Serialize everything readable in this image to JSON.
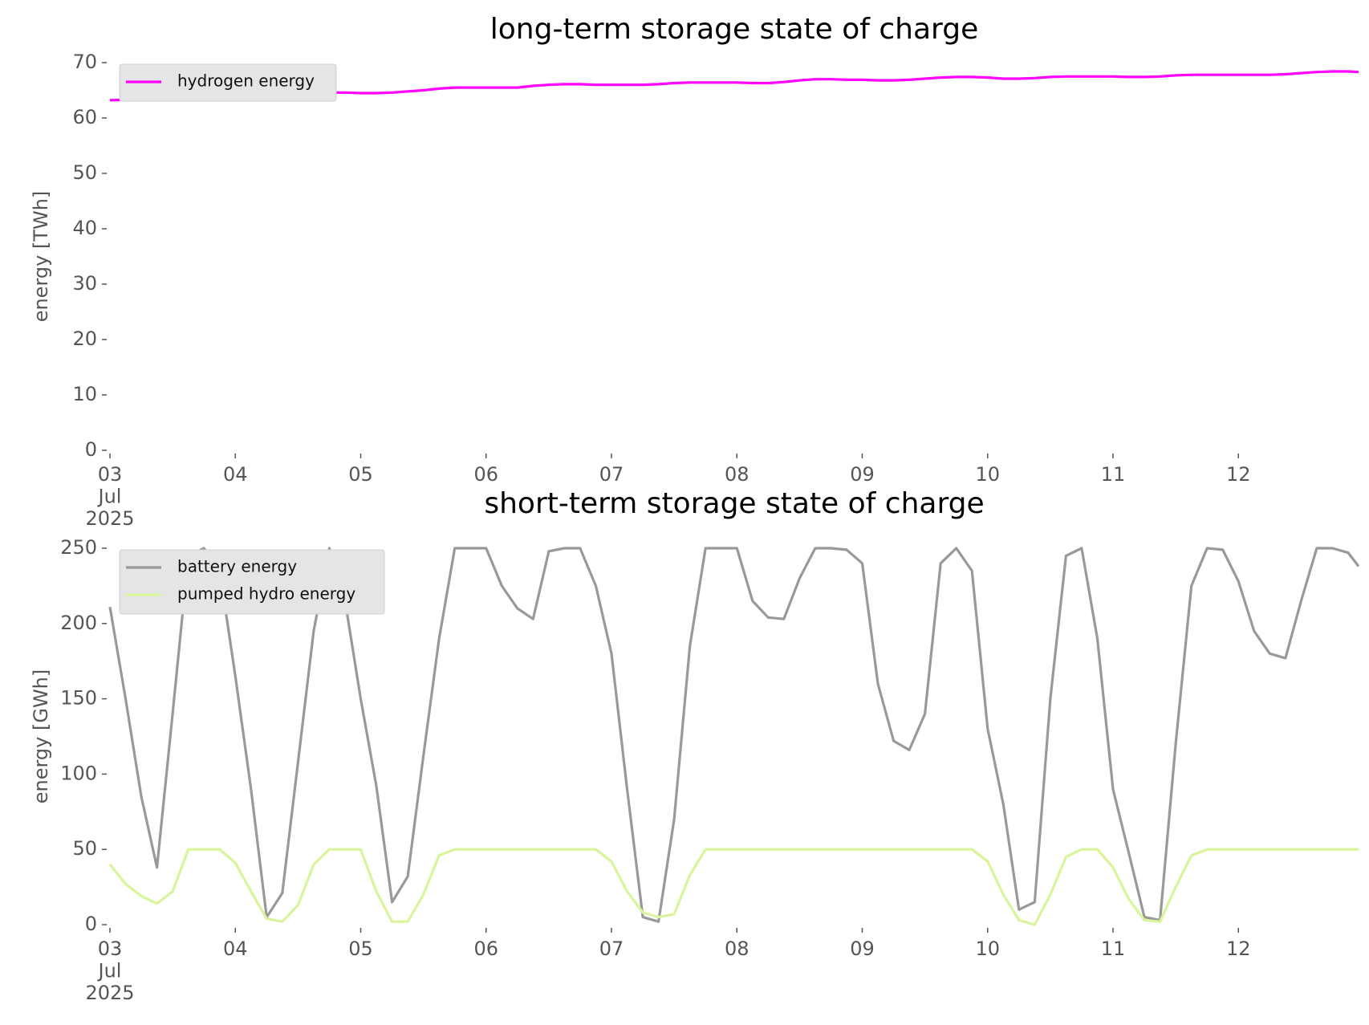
{
  "chart_data": [
    {
      "type": "line",
      "title": "long-term storage state of charge",
      "y_label": "energy [TWh]",
      "legend": "upper left",
      "x": [
        "2025-07-03T00:00",
        "2025-07-03T03:00",
        "2025-07-03T06:00",
        "2025-07-03T09:00",
        "2025-07-03T12:00",
        "2025-07-03T15:00",
        "2025-07-03T18:00",
        "2025-07-03T21:00",
        "2025-07-04T00:00",
        "2025-07-04T03:00",
        "2025-07-04T06:00",
        "2025-07-04T09:00",
        "2025-07-04T12:00",
        "2025-07-04T15:00",
        "2025-07-04T18:00",
        "2025-07-04T21:00",
        "2025-07-05T00:00",
        "2025-07-05T03:00",
        "2025-07-05T06:00",
        "2025-07-05T09:00",
        "2025-07-05T12:00",
        "2025-07-05T15:00",
        "2025-07-05T18:00",
        "2025-07-05T21:00",
        "2025-07-06T00:00",
        "2025-07-06T03:00",
        "2025-07-06T06:00",
        "2025-07-06T09:00",
        "2025-07-06T12:00",
        "2025-07-06T15:00",
        "2025-07-06T18:00",
        "2025-07-06T21:00",
        "2025-07-07T00:00",
        "2025-07-07T03:00",
        "2025-07-07T06:00",
        "2025-07-07T09:00",
        "2025-07-07T12:00",
        "2025-07-07T15:00",
        "2025-07-07T18:00",
        "2025-07-07T21:00",
        "2025-07-08T00:00",
        "2025-07-08T03:00",
        "2025-07-08T06:00",
        "2025-07-08T09:00",
        "2025-07-08T12:00",
        "2025-07-08T15:00",
        "2025-07-08T18:00",
        "2025-07-08T21:00",
        "2025-07-09T00:00",
        "2025-07-09T03:00",
        "2025-07-09T06:00",
        "2025-07-09T09:00",
        "2025-07-09T12:00",
        "2025-07-09T15:00",
        "2025-07-09T18:00",
        "2025-07-09T21:00",
        "2025-07-10T00:00",
        "2025-07-10T03:00",
        "2025-07-10T06:00",
        "2025-07-10T09:00",
        "2025-07-10T12:00",
        "2025-07-10T15:00",
        "2025-07-10T18:00",
        "2025-07-10T21:00",
        "2025-07-11T00:00",
        "2025-07-11T03:00",
        "2025-07-11T06:00",
        "2025-07-11T09:00",
        "2025-07-11T12:00",
        "2025-07-11T15:00",
        "2025-07-11T18:00",
        "2025-07-11T21:00",
        "2025-07-12T00:00",
        "2025-07-12T03:00",
        "2025-07-12T06:00",
        "2025-07-12T09:00",
        "2025-07-12T12:00",
        "2025-07-12T15:00",
        "2025-07-12T18:00",
        "2025-07-12T21:00",
        "2025-07-12T23:00"
      ],
      "series": [
        {
          "name": "hydrogen energy",
          "color": "#ff00ff",
          "values": [
            63.2,
            63.3,
            63.4,
            63.6,
            63.8,
            64.0,
            64.1,
            64.0,
            63.9,
            63.9,
            64.1,
            64.3,
            64.5,
            64.6,
            64.6,
            64.6,
            64.5,
            64.5,
            64.6,
            64.8,
            65.0,
            65.3,
            65.5,
            65.5,
            65.5,
            65.5,
            65.5,
            65.8,
            66.0,
            66.1,
            66.1,
            66.0,
            66.0,
            66.0,
            66.0,
            66.1,
            66.3,
            66.4,
            66.4,
            66.4,
            66.4,
            66.3,
            66.3,
            66.5,
            66.8,
            67.0,
            67.0,
            66.9,
            66.9,
            66.8,
            66.8,
            66.9,
            67.1,
            67.3,
            67.4,
            67.4,
            67.3,
            67.1,
            67.1,
            67.2,
            67.4,
            67.5,
            67.5,
            67.5,
            67.5,
            67.4,
            67.4,
            67.5,
            67.7,
            67.8,
            67.8,
            67.8,
            67.8,
            67.8,
            67.8,
            67.9,
            68.1,
            68.3,
            68.4,
            68.4,
            68.3
          ]
        }
      ],
      "xlim": [
        "2025-07-03T00:00",
        "2025-07-12T23:00"
      ],
      "xticks": [
        {
          "value": "2025-07-03T00:00",
          "label": "03\nJul\n2025"
        },
        {
          "value": "2025-07-04T00:00",
          "label": "04"
        },
        {
          "value": "2025-07-05T00:00",
          "label": "05"
        },
        {
          "value": "2025-07-06T00:00",
          "label": "06"
        },
        {
          "value": "2025-07-07T00:00",
          "label": "07"
        },
        {
          "value": "2025-07-08T00:00",
          "label": "08"
        },
        {
          "value": "2025-07-09T00:00",
          "label": "09"
        },
        {
          "value": "2025-07-10T00:00",
          "label": "10"
        },
        {
          "value": "2025-07-11T00:00",
          "label": "11"
        },
        {
          "value": "2025-07-12T00:00",
          "label": "12"
        }
      ],
      "ylim": [
        0,
        70
      ],
      "yticks": [
        0,
        10,
        20,
        30,
        40,
        50,
        60,
        70
      ]
    },
    {
      "type": "line",
      "title": "short-term storage state of charge",
      "y_label": "energy [GWh]",
      "legend": "upper left",
      "x": [
        "2025-07-03T00:00",
        "2025-07-03T03:00",
        "2025-07-03T06:00",
        "2025-07-03T09:00",
        "2025-07-03T12:00",
        "2025-07-03T15:00",
        "2025-07-03T18:00",
        "2025-07-03T21:00",
        "2025-07-04T00:00",
        "2025-07-04T03:00",
        "2025-07-04T06:00",
        "2025-07-04T09:00",
        "2025-07-04T12:00",
        "2025-07-04T15:00",
        "2025-07-04T18:00",
        "2025-07-04T21:00",
        "2025-07-05T00:00",
        "2025-07-05T03:00",
        "2025-07-05T06:00",
        "2025-07-05T09:00",
        "2025-07-05T12:00",
        "2025-07-05T15:00",
        "2025-07-05T18:00",
        "2025-07-05T21:00",
        "2025-07-06T00:00",
        "2025-07-06T03:00",
        "2025-07-06T06:00",
        "2025-07-06T09:00",
        "2025-07-06T12:00",
        "2025-07-06T15:00",
        "2025-07-06T18:00",
        "2025-07-06T21:00",
        "2025-07-07T00:00",
        "2025-07-07T03:00",
        "2025-07-07T06:00",
        "2025-07-07T09:00",
        "2025-07-07T12:00",
        "2025-07-07T15:00",
        "2025-07-07T18:00",
        "2025-07-07T21:00",
        "2025-07-08T00:00",
        "2025-07-08T03:00",
        "2025-07-08T06:00",
        "2025-07-08T09:00",
        "2025-07-08T12:00",
        "2025-07-08T15:00",
        "2025-07-08T18:00",
        "2025-07-08T21:00",
        "2025-07-09T00:00",
        "2025-07-09T03:00",
        "2025-07-09T06:00",
        "2025-07-09T09:00",
        "2025-07-09T12:00",
        "2025-07-09T15:00",
        "2025-07-09T18:00",
        "2025-07-09T21:00",
        "2025-07-10T00:00",
        "2025-07-10T03:00",
        "2025-07-10T06:00",
        "2025-07-10T09:00",
        "2025-07-10T12:00",
        "2025-07-10T15:00",
        "2025-07-10T18:00",
        "2025-07-10T21:00",
        "2025-07-11T00:00",
        "2025-07-11T03:00",
        "2025-07-11T06:00",
        "2025-07-11T09:00",
        "2025-07-11T12:00",
        "2025-07-11T15:00",
        "2025-07-11T18:00",
        "2025-07-11T21:00",
        "2025-07-12T00:00",
        "2025-07-12T03:00",
        "2025-07-12T06:00",
        "2025-07-12T09:00",
        "2025-07-12T12:00",
        "2025-07-12T15:00",
        "2025-07-12T18:00",
        "2025-07-12T21:00",
        "2025-07-12T23:00"
      ],
      "series": [
        {
          "name": "battery energy",
          "color": "#999999",
          "values": [
            211,
            150,
            85,
            38,
            140,
            245,
            250,
            235,
            165,
            90,
            5,
            21,
            108,
            195,
            250,
            215,
            150,
            92,
            15,
            32,
            112,
            190,
            250,
            250,
            250,
            225,
            210,
            203,
            248,
            250,
            250,
            225,
            180,
            90,
            5,
            2,
            70,
            185,
            250,
            250,
            250,
            215,
            204,
            203,
            230,
            250,
            250,
            249,
            240,
            160,
            122,
            116,
            140,
            240,
            250,
            235,
            130,
            80,
            10,
            15,
            150,
            245,
            250,
            190,
            90,
            48,
            5,
            3,
            120,
            225,
            250,
            249,
            228,
            195,
            180,
            177,
            215,
            250,
            250,
            247,
            238
          ]
        },
        {
          "name": "pumped hydro energy",
          "color": "#d9f59a",
          "values": [
            40,
            27,
            19,
            14,
            22,
            50,
            50,
            50,
            41,
            22,
            4,
            2,
            13,
            40,
            50,
            50,
            50,
            22,
            2,
            2,
            20,
            46,
            50,
            50,
            50,
            50,
            50,
            50,
            50,
            50,
            50,
            50,
            42,
            22,
            8,
            5,
            7,
            33,
            50,
            50,
            50,
            50,
            50,
            50,
            50,
            50,
            50,
            50,
            50,
            50,
            50,
            50,
            50,
            50,
            50,
            50,
            42,
            20,
            3,
            0,
            20,
            45,
            50,
            50,
            38,
            17,
            3,
            2,
            25,
            46,
            50,
            50,
            50,
            50,
            50,
            50,
            50,
            50,
            50,
            50,
            50
          ]
        }
      ],
      "xlim": [
        "2025-07-03T00:00",
        "2025-07-12T23:00"
      ],
      "xticks": [
        {
          "value": "2025-07-03T00:00",
          "label": "03\nJul\n2025"
        },
        {
          "value": "2025-07-04T00:00",
          "label": "04"
        },
        {
          "value": "2025-07-05T00:00",
          "label": "05"
        },
        {
          "value": "2025-07-06T00:00",
          "label": "06"
        },
        {
          "value": "2025-07-07T00:00",
          "label": "07"
        },
        {
          "value": "2025-07-08T00:00",
          "label": "08"
        },
        {
          "value": "2025-07-09T00:00",
          "label": "09"
        },
        {
          "value": "2025-07-10T00:00",
          "label": "10"
        },
        {
          "value": "2025-07-11T00:00",
          "label": "11"
        },
        {
          "value": "2025-07-12T00:00",
          "label": "12"
        }
      ],
      "ylim": [
        0,
        250
      ],
      "yticks": [
        0,
        50,
        100,
        150,
        200,
        250
      ]
    }
  ]
}
